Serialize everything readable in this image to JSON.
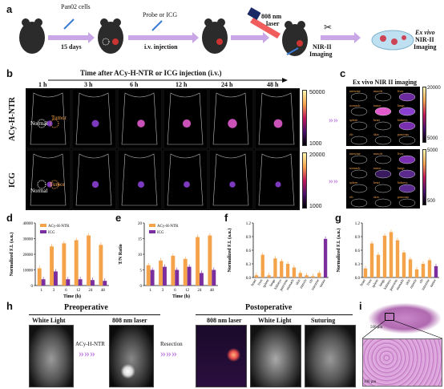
{
  "panel_labels": {
    "a": "a",
    "b": "b",
    "c": "c",
    "d": "d",
    "e": "e",
    "f": "f",
    "g": "g",
    "h": "h",
    "i": "i"
  },
  "panel_a": {
    "pan02": "Pan02 cells",
    "days": "15 days",
    "probe": "Probe or ICG",
    "iv": "i.v. injection",
    "laser": "808 nm",
    "laser2": "laser",
    "nir1": "NIR-II",
    "nir2": "Imaging",
    "exvivo": "Ex vivo",
    "exnir": "NIR-II",
    "eximg": "Imaging"
  },
  "panel_b": {
    "title": "Time after ACy-H-NTR or ICG injection (i.v.)",
    "times": [
      "1 h",
      "3 h",
      "6 h",
      "12 h",
      "24 h",
      "48 h"
    ],
    "row1": "ACy-H-NTR",
    "row2": "ICG",
    "normal": "Normal",
    "tumor": "Tumor",
    "cb1_max": "50000",
    "cb1_min": "1000",
    "cb2_max": "20000",
    "cb2_min": "1000"
  },
  "panel_c": {
    "title": "Ex vivo NIR II imaging",
    "organs": [
      "intestine",
      "muscle",
      "liver",
      "stomach",
      "tumor",
      "lungs",
      "spleen",
      "heart",
      "kidneys",
      "rib",
      "skin",
      "pancreas"
    ],
    "cb1_max": "20000",
    "cb1_min": "5000",
    "cb2_max": "5000",
    "cb2_min": "500"
  },
  "chart_data": [
    {
      "type": "bar",
      "id": "d",
      "ylabel": "Normalized F.I. (a.u.)",
      "xlabel": "Time (h)",
      "categories": [
        "1",
        "3",
        "6",
        "12",
        "24",
        "48"
      ],
      "ylim": [
        0,
        40000
      ],
      "yticks": [
        "0",
        "10000",
        "20000",
        "30000",
        "40000"
      ],
      "series": [
        {
          "name": "ACy-H-NTR",
          "color": "#f5a34a",
          "values": [
            11000,
            25000,
            27000,
            29000,
            32000,
            26000
          ]
        },
        {
          "name": "ICG",
          "color": "#7b2f9e",
          "values": [
            4000,
            9000,
            4000,
            4000,
            3500,
            3000
          ]
        }
      ]
    },
    {
      "type": "bar",
      "id": "e",
      "ylabel": "T/N Ratio",
      "xlabel": "Time (h)",
      "categories": [
        "1",
        "3",
        "6",
        "12",
        "24",
        "48"
      ],
      "ylim": [
        0,
        20
      ],
      "yticks": [
        "0",
        "5",
        "10",
        "15",
        "20"
      ],
      "series": [
        {
          "name": "ACy-H-NTR",
          "color": "#f5a34a",
          "values": [
            6.5,
            8,
            9.5,
            8.5,
            15.5,
            16
          ]
        },
        {
          "name": "ICG",
          "color": "#7b2f9e",
          "values": [
            5,
            6,
            5,
            6,
            4,
            5
          ]
        }
      ]
    },
    {
      "type": "bar",
      "id": "f",
      "ylabel": "Normalized F.I. (a.u.)",
      "ylim": [
        0,
        1.2
      ],
      "yticks": [
        "0.0",
        "0.3",
        "0.6",
        "0.9",
        "1.2"
      ],
      "categories": [
        "heart",
        "liver",
        "spleen",
        "lungs",
        "kidneys",
        "pancreas",
        "stomach",
        "skin",
        "muscle",
        "rib",
        "intestine",
        "tumor"
      ],
      "colors": [
        "#f5a34a",
        "#f5a34a",
        "#f5a34a",
        "#f5a34a",
        "#f5a34a",
        "#f5a34a",
        "#f5a34a",
        "#f5a34a",
        "#f5a34a",
        "#f5a34a",
        "#f5a34a",
        "#7b2f9e"
      ],
      "values": [
        0.05,
        0.5,
        0.05,
        0.42,
        0.36,
        0.3,
        0.22,
        0.1,
        0.05,
        0.03,
        0.1,
        0.85
      ]
    },
    {
      "type": "bar",
      "id": "g",
      "ylabel": "Normalized F.I. (a.u.)",
      "ylim": [
        0,
        1.2
      ],
      "yticks": [
        "0.0",
        "0.3",
        "0.6",
        "0.9",
        "1.2"
      ],
      "categories": [
        "heart",
        "liver",
        "spleen",
        "lungs",
        "kidneys",
        "pancreas",
        "stomach",
        "skin",
        "muscle",
        "rib",
        "intestine",
        "tumor"
      ],
      "colors": [
        "#f5a34a",
        "#f5a34a",
        "#f5a34a",
        "#f5a34a",
        "#f5a34a",
        "#f5a34a",
        "#f5a34a",
        "#f5a34a",
        "#f5a34a",
        "#f5a34a",
        "#f5a34a",
        "#7b2f9e"
      ],
      "values": [
        0.2,
        0.75,
        0.5,
        0.92,
        1.0,
        0.82,
        0.55,
        0.4,
        0.18,
        0.3,
        0.38,
        0.25
      ]
    }
  ],
  "panel_h": {
    "preop": "Preoperative",
    "postop": "Postoperative",
    "white1": "White Light",
    "laser1": "808 nm laser",
    "arrow1": "ACy-H-NTR",
    "resect": "Resection",
    "laser2": "808 nm laser",
    "white2": "White Light",
    "suturing": "Suturing"
  },
  "panel_i": {
    "scale1": "500 μm",
    "scale2": "100 μm"
  }
}
